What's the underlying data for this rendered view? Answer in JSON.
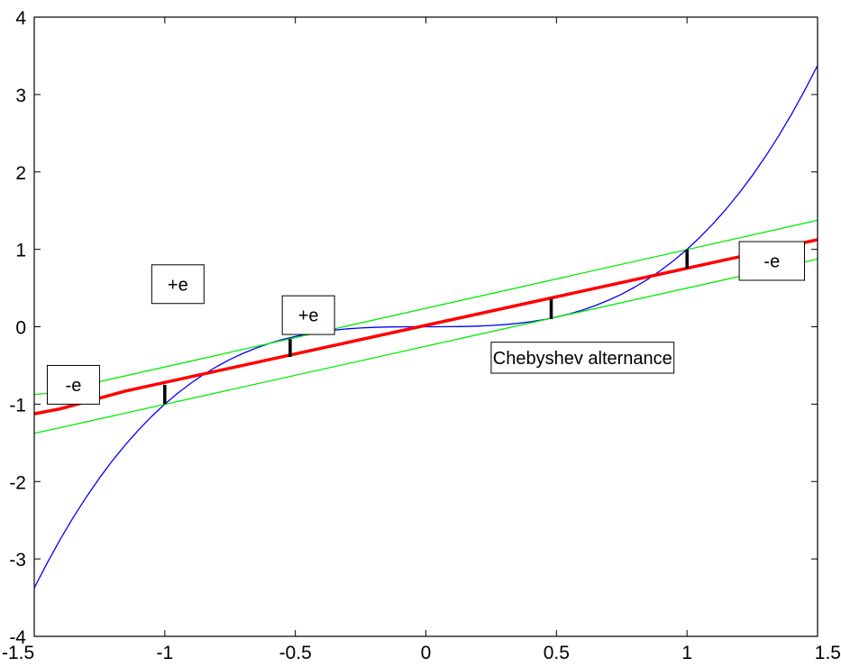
{
  "chart_data": {
    "type": "line",
    "title": "",
    "xlabel": "",
    "ylabel": "",
    "xlim": [
      -1.5,
      1.5
    ],
    "ylim": [
      -4,
      4
    ],
    "grid": false,
    "x_ticks": [
      -1.5,
      -1,
      -0.5,
      0,
      0.5,
      1,
      1.5
    ],
    "x_tick_labels": [
      "-1.5",
      "-1",
      "-0.5",
      "0",
      "0.5",
      "1",
      "1.5"
    ],
    "y_ticks": [
      -4,
      -3,
      -2,
      -1,
      0,
      1,
      2,
      3,
      4
    ],
    "y_tick_labels": [
      "-4",
      "-3",
      "-2",
      "-1",
      "0",
      "1",
      "2",
      "3",
      "4"
    ],
    "series": [
      {
        "color": "#0000ff",
        "width": 1.3,
        "x": [
          -1.5,
          -1.45,
          -1.4,
          -1.35,
          -1.3,
          -1.25,
          -1.2,
          -1.15,
          -1.1,
          -1.05,
          -1.0,
          -0.95,
          -0.9,
          -0.85,
          -0.8,
          -0.75,
          -0.7,
          -0.65,
          -0.6,
          -0.55,
          -0.5,
          -0.45,
          -0.4,
          -0.35,
          -0.3,
          -0.25,
          -0.2,
          -0.15,
          -0.1,
          -0.05,
          0.0,
          0.05,
          0.1,
          0.15,
          0.2,
          0.25,
          0.3,
          0.35,
          0.4,
          0.45,
          0.5,
          0.55,
          0.6,
          0.65,
          0.7,
          0.75,
          0.8,
          0.85,
          0.9,
          0.95,
          1.0,
          1.05,
          1.1,
          1.15,
          1.2,
          1.25,
          1.3,
          1.35,
          1.4,
          1.45,
          1.5
        ],
        "y": [
          -3.375,
          -3.049,
          -2.744,
          -2.46,
          -2.197,
          -1.953,
          -1.728,
          -1.521,
          -1.331,
          -1.158,
          -1.0,
          -0.857,
          -0.729,
          -0.614,
          -0.512,
          -0.422,
          -0.343,
          -0.275,
          -0.216,
          -0.166,
          -0.125,
          -0.091,
          -0.064,
          -0.043,
          -0.027,
          -0.016,
          -0.008,
          -0.003,
          -0.001,
          0.0,
          0.0,
          0.0,
          0.001,
          0.003,
          0.008,
          0.016,
          0.027,
          0.043,
          0.064,
          0.091,
          0.125,
          0.166,
          0.216,
          0.275,
          0.343,
          0.422,
          0.512,
          0.614,
          0.729,
          0.857,
          1.0,
          1.158,
          1.331,
          1.521,
          1.728,
          1.953,
          2.197,
          2.46,
          2.744,
          3.049,
          3.375
        ]
      },
      {
        "color": "#ff0000",
        "width": 3.5,
        "x": [
          -1.5,
          -1.4,
          -1.15,
          1.5
        ],
        "y": [
          -1.125,
          -1.06,
          -0.83,
          1.125
        ]
      },
      {
        "color": "#00ee00",
        "width": 1.3,
        "x": [
          -1.5,
          -1.45,
          1.5
        ],
        "y": [
          -0.875,
          -0.86,
          1.375
        ]
      },
      {
        "color": "#00ee00",
        "width": 1.3,
        "x": [
          -1.5,
          -1.45,
          1.5
        ],
        "y": [
          -1.375,
          -1.34,
          0.875
        ]
      },
      {
        "color": "#000000",
        "width": 3.5,
        "x": [
          -1.0,
          -1.0
        ],
        "y": [
          -0.75,
          -1.0
        ]
      },
      {
        "color": "#000000",
        "width": 3.5,
        "x": [
          -0.52,
          -0.52
        ],
        "y": [
          -0.16,
          -0.39
        ]
      },
      {
        "color": "#000000",
        "width": 3.5,
        "x": [
          0.48,
          0.48
        ],
        "y": [
          0.1,
          0.36
        ]
      },
      {
        "color": "#000000",
        "width": 3.5,
        "x": [
          1.0,
          1.0
        ],
        "y": [
          0.75,
          1.0
        ]
      }
    ],
    "annotations": [
      {
        "text": "-e",
        "x0": -1.45,
        "x1": -1.25,
        "y0": -1.0,
        "y1": -0.5
      },
      {
        "text": "+e",
        "x0": -1.05,
        "x1": -0.85,
        "y0": 0.3,
        "y1": 0.8
      },
      {
        "text": "+e",
        "x0": -0.55,
        "x1": -0.35,
        "y0": -0.1,
        "y1": 0.4
      },
      {
        "text": "-e",
        "x0": 1.2,
        "x1": 1.45,
        "y0": 0.6,
        "y1": 1.1
      },
      {
        "text": "Chebyshev alternance",
        "x0": 0.25,
        "x1": 0.95,
        "y0": -0.6,
        "y1": -0.2
      }
    ]
  }
}
